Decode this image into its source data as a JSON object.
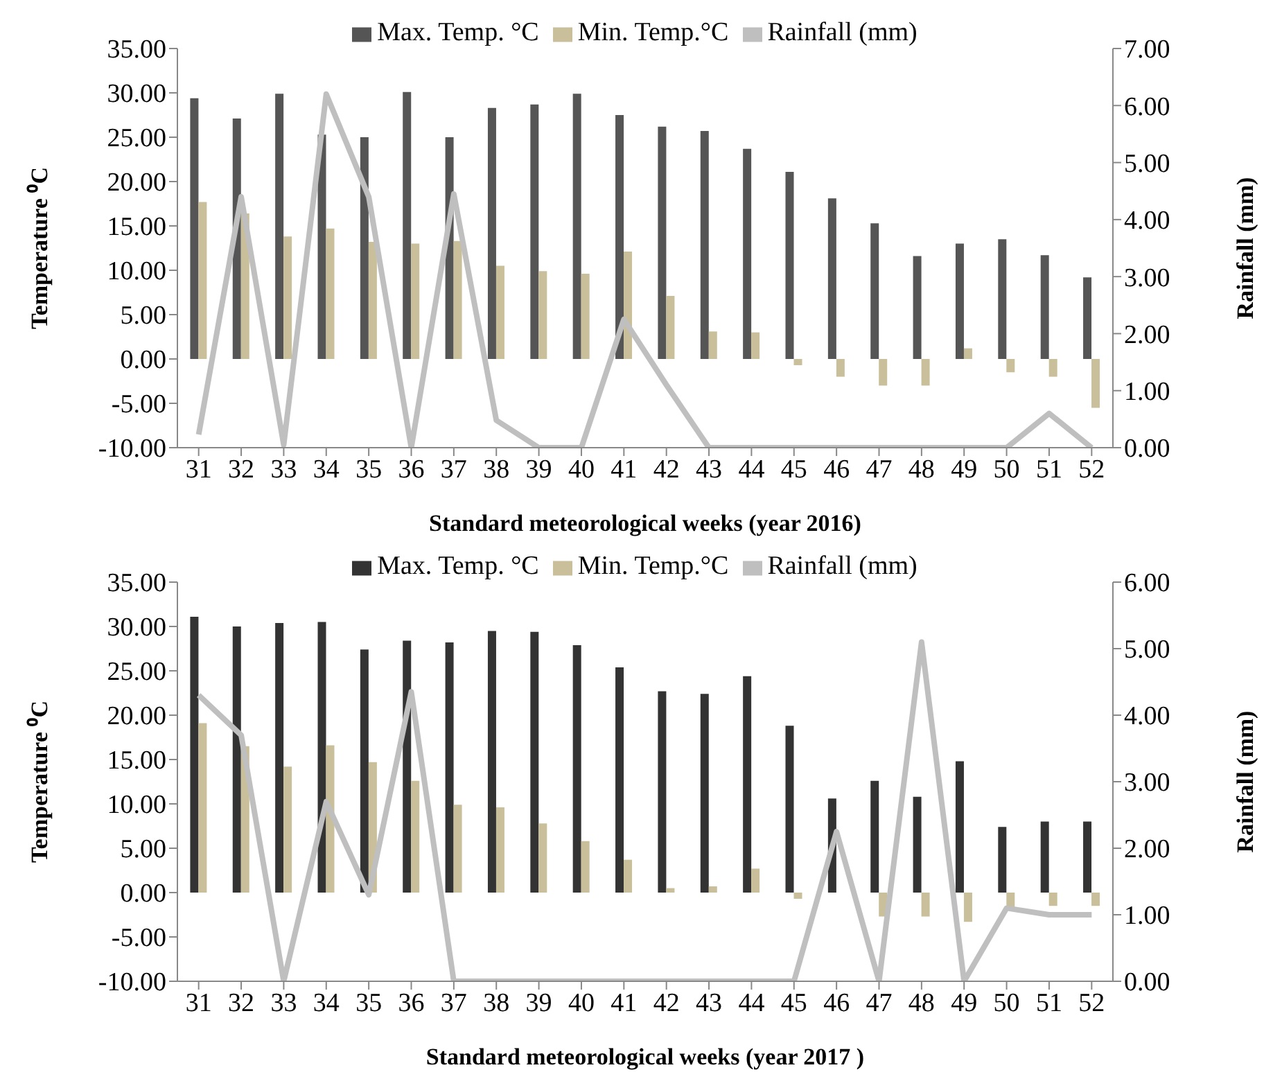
{
  "chart_data": [
    {
      "type": "bar",
      "xlabel": "Standard meteorological weeks  (year 2016)",
      "ylabel": "Temperature ⁰C",
      "y2label": "Rainfall (mm)",
      "legend": "top",
      "categories": [
        "31",
        "32",
        "33",
        "34",
        "35",
        "36",
        "37",
        "38",
        "39",
        "40",
        "41",
        "42",
        "43",
        "44",
        "45",
        "46",
        "47",
        "48",
        "49",
        "50",
        "51",
        "52"
      ],
      "series": [
        {
          "name": "Max. Temp. °C",
          "color": "#555555",
          "values": [
            29.4,
            27.1,
            29.9,
            25.3,
            25.0,
            30.1,
            25.0,
            28.3,
            28.7,
            29.9,
            27.5,
            26.2,
            25.7,
            23.7,
            21.1,
            18.1,
            15.3,
            11.6,
            13.0,
            13.5,
            11.7,
            9.2
          ]
        },
        {
          "name": "Min. Temp.°C",
          "color": "#c9bf9a",
          "values": [
            17.7,
            16.4,
            13.8,
            14.7,
            13.2,
            13.0,
            13.3,
            10.5,
            9.9,
            9.6,
            12.1,
            7.1,
            3.1,
            3.0,
            -0.7,
            -2.0,
            -3.0,
            -3.0,
            1.2,
            -1.5,
            -2.0,
            -5.5
          ]
        },
        {
          "name": "Rainfall (mm)",
          "type": "line",
          "axis": "y2",
          "color": "#bfbfbf",
          "values": [
            0.23,
            4.4,
            0.05,
            6.2,
            4.4,
            0.0,
            4.45,
            0.48,
            0.0,
            0.0,
            2.25,
            1.1,
            0.0,
            0.0,
            0.0,
            0.0,
            0.0,
            0.0,
            0.0,
            0.0,
            0.6,
            0.0
          ]
        }
      ],
      "ylim": [
        -10,
        35
      ],
      "yticks": [
        {
          "value": -10,
          "label": "-10.00"
        },
        {
          "value": -5,
          "label": "-5.00"
        },
        {
          "value": 0,
          "label": "0.00"
        },
        {
          "value": 5,
          "label": "5.00"
        },
        {
          "value": 10,
          "label": "10.00"
        },
        {
          "value": 15,
          "label": "15.00"
        },
        {
          "value": 20,
          "label": "20.00"
        },
        {
          "value": 25,
          "label": "25.00"
        },
        {
          "value": 30,
          "label": "30.00"
        },
        {
          "value": 35,
          "label": "35.00"
        }
      ],
      "y2lim": [
        0,
        7
      ],
      "y2ticks": [
        {
          "value": 0,
          "label": "0.00"
        },
        {
          "value": 1,
          "label": "1.00"
        },
        {
          "value": 2,
          "label": "2.00"
        },
        {
          "value": 3,
          "label": "3.00"
        },
        {
          "value": 4,
          "label": "4.00"
        },
        {
          "value": 5,
          "label": "5.00"
        },
        {
          "value": 6,
          "label": "6.00"
        },
        {
          "value": 7,
          "label": "7.00"
        }
      ]
    },
    {
      "type": "bar",
      "xlabel": "Standard meteorological  weeks  (year 2017 )",
      "ylabel": "Temperature ⁰C",
      "y2label": "Rainfall (mm)",
      "legend": "top",
      "categories": [
        "31",
        "32",
        "33",
        "34",
        "35",
        "36",
        "37",
        "38",
        "39",
        "40",
        "41",
        "42",
        "43",
        "44",
        "45",
        "46",
        "47",
        "48",
        "49",
        "50",
        "51",
        "52"
      ],
      "series": [
        {
          "name": "Max. Temp. °C",
          "color": "#333333",
          "values": [
            31.1,
            30.0,
            30.4,
            30.5,
            27.4,
            28.4,
            28.2,
            29.5,
            29.4,
            27.9,
            25.4,
            22.7,
            22.4,
            24.4,
            18.8,
            10.6,
            12.6,
            10.8,
            14.8,
            7.4,
            8.0,
            8.0
          ]
        },
        {
          "name": "Min. Temp.°C",
          "color": "#c9bf9a",
          "values": [
            19.1,
            16.5,
            14.2,
            16.6,
            14.7,
            12.6,
            9.9,
            9.6,
            7.8,
            5.8,
            3.7,
            0.5,
            0.7,
            2.7,
            -0.7,
            0.0,
            -2.7,
            -2.7,
            -3.3,
            -1.7,
            -1.5,
            -1.5
          ]
        },
        {
          "name": "Rainfall (mm)",
          "type": "line",
          "axis": "y2",
          "color": "#bfbfbf",
          "values": [
            4.3,
            3.7,
            0.0,
            2.7,
            1.3,
            4.35,
            0.0,
            0.0,
            0.0,
            0.0,
            0.0,
            0.0,
            0.0,
            0.0,
            0.0,
            2.25,
            0.0,
            5.1,
            0.0,
            1.1,
            1.0,
            1.0
          ]
        }
      ],
      "ylim": [
        -10,
        35
      ],
      "yticks": [
        {
          "value": -10,
          "label": "-10.00"
        },
        {
          "value": -5,
          "label": "-5.00"
        },
        {
          "value": 0,
          "label": "0.00"
        },
        {
          "value": 5,
          "label": "5.00"
        },
        {
          "value": 10,
          "label": "10.00"
        },
        {
          "value": 15,
          "label": "15.00"
        },
        {
          "value": 20,
          "label": "20.00"
        },
        {
          "value": 25,
          "label": "25.00"
        },
        {
          "value": 30,
          "label": "30.00"
        },
        {
          "value": 35,
          "label": "35.00"
        }
      ],
      "y2lim": [
        0,
        6
      ],
      "y2ticks": [
        {
          "value": 0,
          "label": "0.00"
        },
        {
          "value": 1,
          "label": "1.00"
        },
        {
          "value": 2,
          "label": "2.00"
        },
        {
          "value": 3,
          "label": "3.00"
        },
        {
          "value": 4,
          "label": "4.00"
        },
        {
          "value": 5,
          "label": "5.00"
        },
        {
          "value": 6,
          "label": "6.00"
        }
      ]
    }
  ]
}
